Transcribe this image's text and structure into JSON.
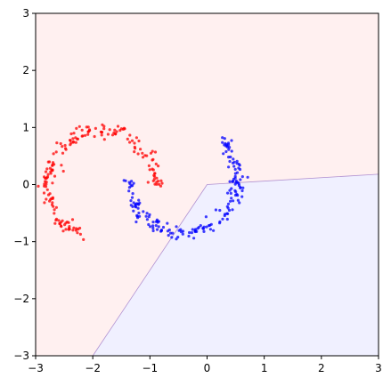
{
  "chart_data": {
    "type": "scatter",
    "title": "",
    "xlabel": "",
    "ylabel": "",
    "xlim": [
      -3,
      3
    ],
    "ylim": [
      -3,
      3
    ],
    "grid": false,
    "x_ticks": [
      "−3",
      "−2",
      "−1",
      "0",
      "1",
      "2",
      "3"
    ],
    "y_ticks": [
      "−3",
      "−2",
      "−1",
      "0",
      "1",
      "2",
      "3"
    ],
    "decision_regions": {
      "class_0_fill": "#fff0f0",
      "class_1_fill": "#f0f0ff",
      "boundary_color": "#b090d0",
      "class_1_polygon": [
        [
          -2.0,
          -3.0
        ],
        [
          0.0,
          0.0
        ],
        [
          3.0,
          0.18
        ],
        [
          3.0,
          -3.0
        ]
      ]
    },
    "series": [
      {
        "color": "#ff0000",
        "arc": {
          "cx": -1.85,
          "cy": 0.0,
          "r": 0.95,
          "start_deg": 0,
          "end_deg": 250,
          "noise": 0.06,
          "count": 180
        }
      },
      {
        "color": "#0000ff",
        "arc": {
          "cx": -0.42,
          "cy": 0.1,
          "r": 0.95,
          "start_deg": 180,
          "end_deg": 405,
          "noise": 0.06,
          "count": 180
        }
      }
    ]
  }
}
